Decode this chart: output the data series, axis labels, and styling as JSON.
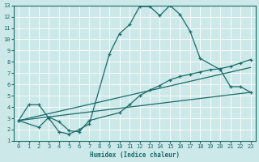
{
  "xlabel": "Humidex (Indice chaleur)",
  "bg_color": "#cce8e8",
  "grid_color": "#ffffff",
  "line_color": "#1a6b6b",
  "xlim": [
    -0.5,
    23.5
  ],
  "ylim": [
    1,
    13
  ],
  "xticks": [
    0,
    1,
    2,
    3,
    4,
    5,
    6,
    7,
    8,
    9,
    10,
    11,
    12,
    13,
    14,
    15,
    16,
    17,
    18,
    19,
    20,
    21,
    22,
    23
  ],
  "yticks": [
    1,
    2,
    3,
    4,
    5,
    6,
    7,
    8,
    9,
    10,
    11,
    12,
    13
  ],
  "curve1_x": [
    0,
    1,
    2,
    3,
    4,
    5,
    6,
    7,
    9,
    10,
    11,
    12,
    13,
    14,
    15,
    16,
    17,
    18,
    20,
    21,
    22,
    23
  ],
  "curve1_y": [
    2.8,
    4.2,
    4.2,
    3.0,
    1.8,
    1.6,
    2.0,
    2.5,
    8.7,
    10.5,
    11.3,
    12.9,
    12.9,
    12.1,
    13.0,
    12.2,
    10.7,
    8.3,
    7.3,
    5.8,
    5.8,
    5.3
  ],
  "curve2_x": [
    0,
    2,
    3,
    4,
    5,
    6,
    7,
    10,
    11,
    12,
    13,
    14,
    15,
    16,
    17,
    18,
    19,
    20,
    21,
    22,
    23
  ],
  "curve2_y": [
    2.8,
    2.2,
    3.1,
    2.7,
    1.9,
    1.8,
    2.8,
    3.5,
    4.2,
    5.0,
    5.5,
    5.9,
    6.4,
    6.7,
    6.9,
    7.1,
    7.3,
    7.4,
    7.6,
    7.9,
    8.2
  ],
  "line3_x": [
    0,
    23
  ],
  "line3_y": [
    2.8,
    7.5
  ],
  "line4_x": [
    0,
    23
  ],
  "line4_y": [
    2.8,
    5.3
  ]
}
